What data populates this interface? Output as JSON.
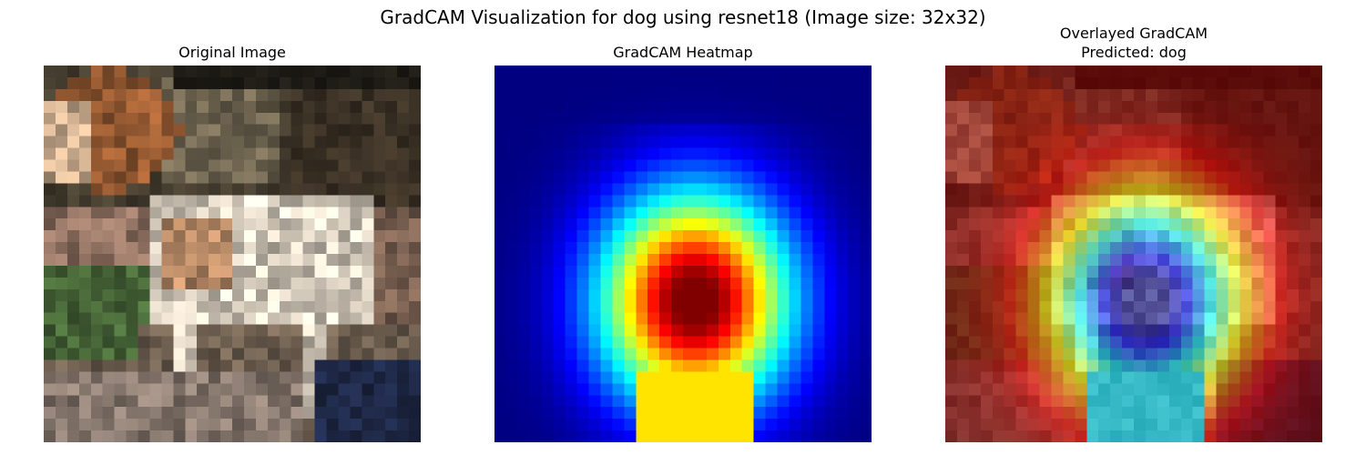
{
  "figure": {
    "suptitle": "GradCAM Visualization for dog using resnet18 (Image size: 32x32)"
  },
  "panels": [
    {
      "title": "Original Image",
      "kind": "photo-thumbnail",
      "subject": "dog"
    },
    {
      "title": "GradCAM Heatmap",
      "kind": "heatmap",
      "colormap": "jet"
    },
    {
      "title_lines": [
        "Overlayed GradCAM",
        "Predicted: dog"
      ],
      "kind": "overlay"
    }
  ],
  "grid": {
    "rows": 32,
    "cols": 32
  }
}
